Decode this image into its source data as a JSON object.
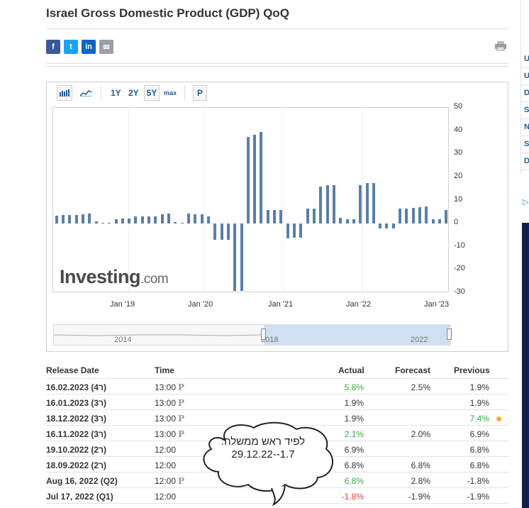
{
  "title": "Israel Gross Domestic Product (GDP) QoQ",
  "share": {
    "facebook": "f",
    "twitter": "t",
    "linkedin": "in",
    "email": "✉"
  },
  "toolbar": {
    "ranges": [
      "1Y",
      "2Y",
      "5Y",
      "max"
    ],
    "selected_range": "5Y",
    "p_button": "P"
  },
  "logo": {
    "main": "Investing",
    "suffix": ".com"
  },
  "chart_data": {
    "type": "bar",
    "ylim": [
      -30,
      50
    ],
    "y_ticks": [
      "50",
      "40",
      "30",
      "20",
      "10",
      "0",
      "-10",
      "-20",
      "-30"
    ],
    "x_ticks": [
      "Jan '19",
      "Jan '20",
      "Jan '21",
      "Jan '22",
      "Jan '23"
    ],
    "values": [
      3.5,
      3.6,
      3.6,
      3.7,
      4.0,
      4.2,
      1.0,
      0.4,
      0.4,
      2.0,
      2.2,
      2.2,
      3.0,
      3.2,
      3.2,
      3.2,
      4.0,
      4.2,
      0.5,
      0.3,
      4.2,
      4.0,
      4.0,
      3.0,
      -7.0,
      -7.0,
      -7.0,
      -29.0,
      -29.0,
      37.5,
      38.5,
      39.5,
      6.0,
      6.0,
      6.0,
      -6.5,
      -6.0,
      -6.0,
      6.5,
      6.5,
      16.0,
      16.5,
      16.5,
      2.5,
      2.0,
      2.0,
      16.5,
      17.5,
      17.5,
      -2.0,
      -2.0,
      -2.0,
      6.5,
      6.5,
      6.8,
      7.0,
      7.4,
      1.9,
      1.9,
      5.8
    ],
    "navigator": {
      "labels": [
        "2014",
        "2018",
        "2022"
      ]
    }
  },
  "table": {
    "headers": {
      "date": "Release Date",
      "time": "Time",
      "actual": "Actual",
      "forecast": "Forecast",
      "previous": "Previous"
    },
    "rows": [
      {
        "date": "16.02.2023 (ר4)",
        "time": "13:00",
        "p": "P",
        "actual": "5.8%",
        "actual_color": "green",
        "forecast": "2.5%",
        "previous": "1.9%",
        "previous_color": "default"
      },
      {
        "date": "16.01.2023 (ר3)",
        "time": "13:00",
        "p": "P",
        "actual": "1.9%",
        "actual_color": "default",
        "forecast": "",
        "previous": "1.9%",
        "previous_color": "default"
      },
      {
        "date": "18.12.2022 (ר3)",
        "time": "13:00",
        "p": "P",
        "actual": "1.9%",
        "actual_color": "default",
        "forecast": "",
        "previous": "7.4%",
        "previous_color": "green"
      },
      {
        "date": "16.11.2022 (ר3)",
        "time": "13:00",
        "p": "P",
        "actual": "2.1%",
        "actual_color": "green",
        "forecast": "2.0%",
        "previous": "6.9%",
        "previous_color": "default"
      },
      {
        "date": "19.10.2022 (ר2)",
        "time": "12:00",
        "p": "",
        "actual": "6.9%",
        "actual_color": "default",
        "forecast": "",
        "previous": "6.8%",
        "previous_color": "default"
      },
      {
        "date": "18.09.2022 (ר2)",
        "time": "12:00",
        "p": "",
        "actual": "6.8%",
        "actual_color": "default",
        "forecast": "6.8%",
        "previous": "6.8%",
        "previous_color": "default"
      },
      {
        "date": "Aug 16, 2022 (Q2)",
        "time": "12:00",
        "p": "P",
        "actual": "6.8%",
        "actual_color": "green",
        "forecast": "2.8%",
        "previous": "-1.8%",
        "previous_color": "default"
      },
      {
        "date": "Jul 17, 2022 (Q1)",
        "time": "12:00",
        "p": "",
        "actual": "-1.8%",
        "actual_color": "red",
        "forecast": "-1.9%",
        "previous": "-1.9%",
        "previous_color": "default"
      }
    ]
  },
  "annotation": {
    "line1": "לפיד ראש ממשלה:",
    "line2": "29.12.22--1.7"
  },
  "right_strip": {
    "letters": [
      "U",
      "U",
      "D",
      "S",
      "N",
      "S",
      "D"
    ]
  },
  "colors": {
    "bar": "#5a7fa8",
    "accent": "#1f5c99",
    "green": "#3aa845",
    "red": "#e0403a"
  }
}
